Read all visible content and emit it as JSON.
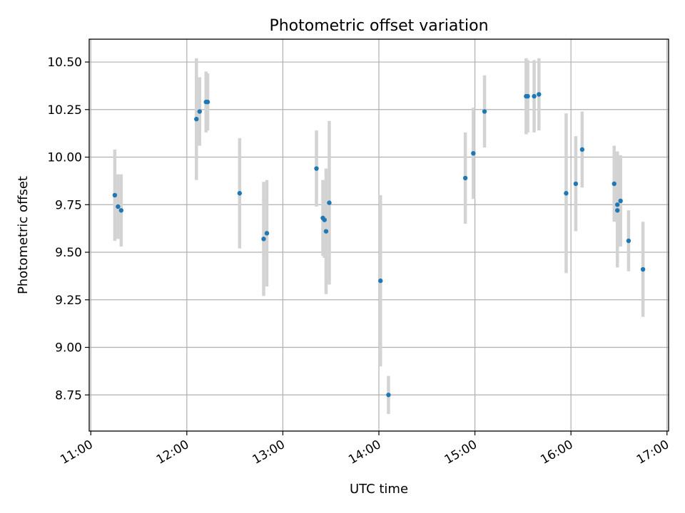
{
  "chart_data": {
    "type": "scatter",
    "title": "Photometric offset variation",
    "xlabel": "UTC time",
    "ylabel": "Photometric offset",
    "xlim": [
      "10:59",
      "17:01"
    ],
    "ylim": [
      8.56,
      10.62
    ],
    "x_ticks": [
      "11:00",
      "12:00",
      "13:00",
      "14:00",
      "15:00",
      "16:00",
      "17:00"
    ],
    "y_ticks": [
      8.75,
      9.0,
      9.25,
      9.5,
      9.75,
      10.0,
      10.25,
      10.5
    ],
    "y_tick_labels": [
      "8.75",
      "9.00",
      "9.25",
      "9.50",
      "9.75",
      "10.00",
      "10.25",
      "10.50"
    ],
    "grid": true,
    "colors": {
      "points": "#1f77b4",
      "error_bars": "#d3d3d3",
      "grid": "#b0b0b0"
    },
    "points": [
      {
        "x": "11:15",
        "y": 9.8,
        "err": 0.24
      },
      {
        "x": "11:17",
        "y": 9.74,
        "err": 0.17
      },
      {
        "x": "11:19",
        "y": 9.72,
        "err": 0.19
      },
      {
        "x": "12:06",
        "y": 10.2,
        "err": 0.32
      },
      {
        "x": "12:08",
        "y": 10.24,
        "err": 0.18
      },
      {
        "x": "12:12",
        "y": 10.29,
        "err": 0.16
      },
      {
        "x": "12:13",
        "y": 10.29,
        "err": 0.15
      },
      {
        "x": "12:33",
        "y": 9.81,
        "err": 0.29
      },
      {
        "x": "12:48",
        "y": 9.57,
        "err": 0.3
      },
      {
        "x": "12:50",
        "y": 9.6,
        "err": 0.28
      },
      {
        "x": "13:21",
        "y": 9.94,
        "err": 0.2
      },
      {
        "x": "13:25",
        "y": 9.68,
        "err": 0.2
      },
      {
        "x": "13:26",
        "y": 9.67,
        "err": 0.2
      },
      {
        "x": "13:27",
        "y": 9.61,
        "err": 0.33
      },
      {
        "x": "13:29",
        "y": 9.76,
        "err": 0.43
      },
      {
        "x": "14:01",
        "y": 9.35,
        "err": 0.45
      },
      {
        "x": "14:06",
        "y": 8.75,
        "err": 0.1
      },
      {
        "x": "14:54",
        "y": 9.89,
        "err": 0.24
      },
      {
        "x": "14:59",
        "y": 10.02,
        "err": 0.24
      },
      {
        "x": "15:06",
        "y": 10.24,
        "err": 0.19
      },
      {
        "x": "15:32",
        "y": 10.32,
        "err": 0.2
      },
      {
        "x": "15:33",
        "y": 10.32,
        "err": 0.19
      },
      {
        "x": "15:37",
        "y": 10.32,
        "err": 0.19
      },
      {
        "x": "15:40",
        "y": 10.33,
        "err": 0.19
      },
      {
        "x": "15:57",
        "y": 9.81,
        "err": 0.42
      },
      {
        "x": "16:03",
        "y": 9.86,
        "err": 0.25
      },
      {
        "x": "16:07",
        "y": 10.04,
        "err": 0.2
      },
      {
        "x": "16:27",
        "y": 9.86,
        "err": 0.2
      },
      {
        "x": "16:29",
        "y": 9.75,
        "err": 0.28
      },
      {
        "x": "16:29",
        "y": 9.72,
        "err": 0.3
      },
      {
        "x": "16:31",
        "y": 9.77,
        "err": 0.24
      },
      {
        "x": "16:36",
        "y": 9.56,
        "err": 0.16
      },
      {
        "x": "16:45",
        "y": 9.41,
        "err": 0.25
      }
    ]
  }
}
